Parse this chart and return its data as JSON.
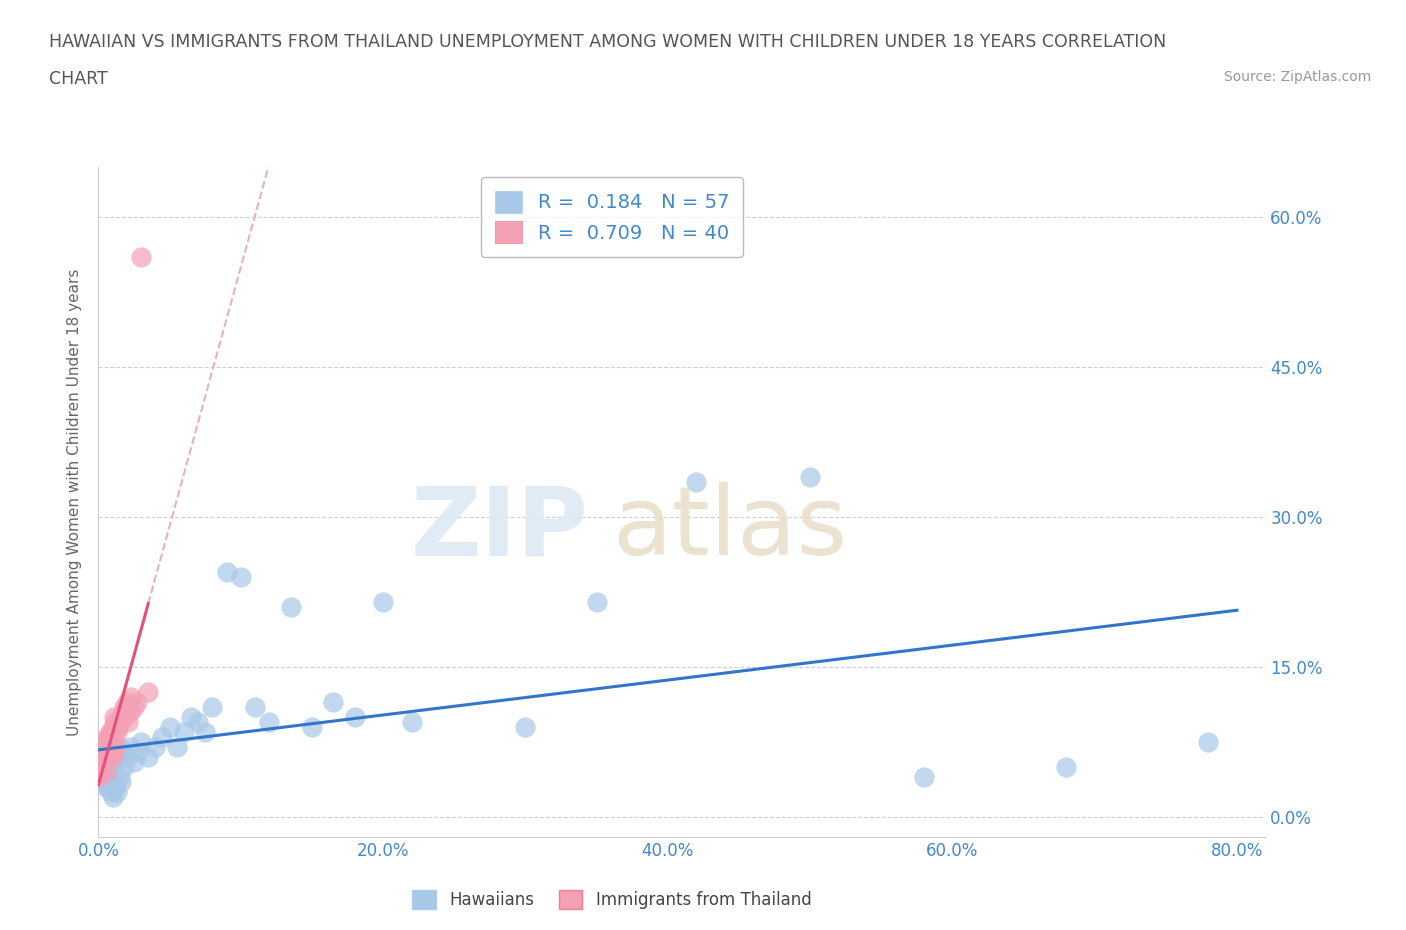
{
  "title_line1": "HAWAIIAN VS IMMIGRANTS FROM THAILAND UNEMPLOYMENT AMONG WOMEN WITH CHILDREN UNDER 18 YEARS CORRELATION",
  "title_line2": "CHART",
  "source": "Source: ZipAtlas.com",
  "ylabel": "Unemployment Among Women with Children Under 18 years",
  "xlim": [
    0.0,
    0.82
  ],
  "ylim": [
    -0.02,
    0.65
  ],
  "xticks": [
    0.0,
    0.2,
    0.4,
    0.6,
    0.8
  ],
  "xticklabels": [
    "0.0%",
    "20.0%",
    "40.0%",
    "60.0%",
    "80.0%"
  ],
  "yticks": [
    0.0,
    0.15,
    0.3,
    0.45,
    0.6
  ],
  "yticklabels": [
    "0.0%",
    "15.0%",
    "30.0%",
    "45.0%",
    "60.0%"
  ],
  "hawaiians_R": 0.184,
  "hawaiians_N": 57,
  "thailand_R": 0.709,
  "thailand_N": 40,
  "hawaiian_color": "#a8c8e8",
  "thailand_color": "#f4a0b5",
  "trendline_hawaii_color": "#3375c8",
  "trendline_thailand_color": "#e8507a",
  "trendline_thailand_ext_color": "#e8b0c0",
  "background_color": "#ffffff",
  "grid_color": "#d0d0d0",
  "tick_color": "#4488cc",
  "ylabel_color": "#666666",
  "title_color": "#555555",
  "source_color": "#999999",
  "watermark_zip_color": "#dce8f5",
  "watermark_atlas_color": "#e8dfc8",
  "hawaiians_x": [
    0.005,
    0.005,
    0.005,
    0.005,
    0.005,
    0.007,
    0.007,
    0.007,
    0.008,
    0.008,
    0.009,
    0.009,
    0.01,
    0.01,
    0.01,
    0.01,
    0.012,
    0.012,
    0.013,
    0.013,
    0.015,
    0.015,
    0.016,
    0.016,
    0.018,
    0.02,
    0.022,
    0.025,
    0.028,
    0.03,
    0.035,
    0.04,
    0.045,
    0.05,
    0.055,
    0.06,
    0.065,
    0.07,
    0.075,
    0.08,
    0.09,
    0.1,
    0.11,
    0.12,
    0.135,
    0.15,
    0.165,
    0.18,
    0.2,
    0.22,
    0.3,
    0.35,
    0.42,
    0.5,
    0.58,
    0.68,
    0.78
  ],
  "hawaiians_y": [
    0.03,
    0.035,
    0.04,
    0.045,
    0.05,
    0.03,
    0.04,
    0.05,
    0.028,
    0.038,
    0.025,
    0.045,
    0.02,
    0.035,
    0.05,
    0.06,
    0.03,
    0.055,
    0.025,
    0.06,
    0.04,
    0.07,
    0.035,
    0.065,
    0.05,
    0.06,
    0.07,
    0.055,
    0.065,
    0.075,
    0.06,
    0.07,
    0.08,
    0.09,
    0.07,
    0.085,
    0.1,
    0.095,
    0.085,
    0.11,
    0.245,
    0.24,
    0.11,
    0.095,
    0.21,
    0.09,
    0.115,
    0.1,
    0.215,
    0.095,
    0.09,
    0.215,
    0.335,
    0.34,
    0.04,
    0.05,
    0.075
  ],
  "thailand_x": [
    0.0,
    0.0,
    0.001,
    0.002,
    0.002,
    0.003,
    0.003,
    0.004,
    0.004,
    0.005,
    0.005,
    0.006,
    0.006,
    0.007,
    0.007,
    0.008,
    0.008,
    0.009,
    0.009,
    0.01,
    0.01,
    0.011,
    0.011,
    0.012,
    0.012,
    0.013,
    0.014,
    0.015,
    0.016,
    0.017,
    0.018,
    0.019,
    0.02,
    0.021,
    0.022,
    0.023,
    0.025,
    0.027,
    0.03,
    0.035
  ],
  "thailand_y": [
    0.04,
    0.055,
    0.045,
    0.055,
    0.065,
    0.06,
    0.075,
    0.055,
    0.07,
    0.045,
    0.06,
    0.065,
    0.08,
    0.06,
    0.075,
    0.07,
    0.085,
    0.065,
    0.08,
    0.06,
    0.09,
    0.075,
    0.1,
    0.07,
    0.095,
    0.085,
    0.09,
    0.095,
    0.1,
    0.105,
    0.11,
    0.1,
    0.115,
    0.095,
    0.105,
    0.12,
    0.11,
    0.115,
    0.56,
    0.125
  ]
}
